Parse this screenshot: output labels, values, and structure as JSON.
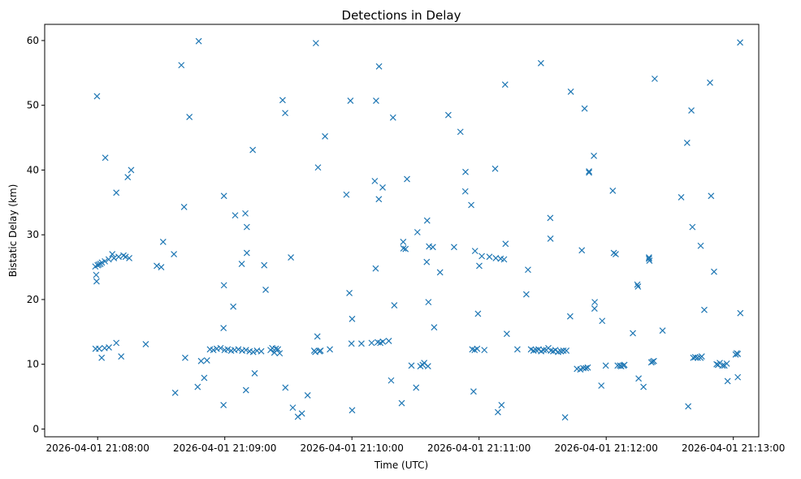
{
  "chart_data": {
    "type": "scatter",
    "title": "Detections in Delay",
    "xlabel": "Time (UTC)",
    "ylabel": "Bistatic Delay (km)",
    "marker": "x",
    "color": "#1f77b4",
    "grid": false,
    "x_unit": "seconds since 2026-04-01 21:08:00 UTC",
    "xlim": [
      -25,
      312
    ],
    "ylim": [
      -1.2,
      62.5
    ],
    "x_ticks": [
      {
        "value": 0,
        "label": "2026-04-01 21:08:00"
      },
      {
        "value": 60,
        "label": "2026-04-01 21:09:00"
      },
      {
        "value": 120,
        "label": "2026-04-01 21:10:00"
      },
      {
        "value": 180,
        "label": "2026-04-01 21:11:00"
      },
      {
        "value": 240,
        "label": "2026-04-01 21:12:00"
      },
      {
        "value": 300,
        "label": "2026-04-01 21:13:00"
      }
    ],
    "y_ticks": [
      {
        "value": 0,
        "label": "0"
      },
      {
        "value": 10,
        "label": "10"
      },
      {
        "value": 20,
        "label": "20"
      },
      {
        "value": 30,
        "label": "30"
      },
      {
        "value": 40,
        "label": "40"
      },
      {
        "value": 50,
        "label": "50"
      },
      {
        "value": 60,
        "label": "60"
      }
    ],
    "points": [
      [
        -1.1,
        25.1
      ],
      [
        -0.7,
        23.8
      ],
      [
        -0.5,
        22.8
      ],
      [
        0,
        25.3
      ],
      [
        0.6,
        25.4
      ],
      [
        1.3,
        25.5
      ],
      [
        2,
        25.7
      ],
      [
        3.4,
        25.9
      ],
      [
        5.2,
        26.2
      ],
      [
        6.9,
        27
      ],
      [
        7.7,
        26.4
      ],
      [
        9.9,
        26.6
      ],
      [
        12.2,
        26.8
      ],
      [
        13.2,
        26.6
      ],
      [
        14.9,
        26.4
      ],
      [
        -1,
        12.4
      ],
      [
        0.7,
        12.4
      ],
      [
        1.9,
        11
      ],
      [
        3.3,
        12.5
      ],
      [
        5.3,
        12.6
      ],
      [
        8.8,
        13.3
      ],
      [
        11.1,
        11.2
      ],
      [
        -0.3,
        51.4
      ],
      [
        3.6,
        41.9
      ],
      [
        8.8,
        36.5
      ],
      [
        14.2,
        38.9
      ],
      [
        15.8,
        40
      ],
      [
        22.7,
        13.1
      ],
      [
        27.9,
        25.2
      ],
      [
        30,
        25
      ],
      [
        30.9,
        28.9
      ],
      [
        36,
        27
      ],
      [
        36.6,
        5.6
      ],
      [
        39.5,
        56.2
      ],
      [
        40.8,
        34.3
      ],
      [
        41.3,
        11
      ],
      [
        43.3,
        48.2
      ],
      [
        47.2,
        6.5
      ],
      [
        47.7,
        59.9
      ],
      [
        48.8,
        10.5
      ],
      [
        50.3,
        7.9
      ],
      [
        51.6,
        10.6
      ],
      [
        53,
        12.3
      ],
      [
        54.6,
        12.2
      ],
      [
        56.2,
        12.4
      ],
      [
        58,
        12.5
      ],
      [
        59.9,
        12.2
      ],
      [
        61.4,
        12.3
      ],
      [
        63,
        12.1
      ],
      [
        64.6,
        12.2
      ],
      [
        66.4,
        12.3
      ],
      [
        68.2,
        12.1
      ],
      [
        70,
        12.2
      ],
      [
        71.7,
        12
      ],
      [
        73.4,
        11.9
      ],
      [
        75.2,
        12.1
      ],
      [
        59.6,
        22.2
      ],
      [
        59.4,
        15.6
      ],
      [
        59.4,
        3.7
      ],
      [
        59.6,
        36
      ],
      [
        64,
        18.9
      ],
      [
        64.9,
        33
      ],
      [
        68,
        25.5
      ],
      [
        69.7,
        33.3
      ],
      [
        70,
        6
      ],
      [
        70.4,
        31.2
      ],
      [
        70.4,
        27.2
      ],
      [
        73.2,
        43.1
      ],
      [
        74.1,
        8.6
      ],
      [
        77.2,
        12
      ],
      [
        78.6,
        25.3
      ],
      [
        79.3,
        21.5
      ],
      [
        81.6,
        12.2
      ],
      [
        82.4,
        12.5
      ],
      [
        83.4,
        11.8
      ],
      [
        84.1,
        12.4
      ],
      [
        85.1,
        12.3
      ],
      [
        85.9,
        11.7
      ],
      [
        87.3,
        50.8
      ],
      [
        88.5,
        48.8
      ],
      [
        88.6,
        6.4
      ],
      [
        91.2,
        26.5
      ],
      [
        92.1,
        3.3
      ],
      [
        94.5,
        1.9
      ],
      [
        96.4,
        2.4
      ],
      [
        99.1,
        5.2
      ],
      [
        102.2,
        12.1
      ],
      [
        102.7,
        11.9
      ],
      [
        103,
        59.6
      ],
      [
        103.7,
        14.3
      ],
      [
        104,
        40.4
      ],
      [
        104.7,
        12
      ],
      [
        105.2,
        12.1
      ],
      [
        107.3,
        45.2
      ],
      [
        109.6,
        12.3
      ],
      [
        117.4,
        36.2
      ],
      [
        118.8,
        21
      ],
      [
        119.3,
        50.7
      ],
      [
        119.8,
        13.2
      ],
      [
        120.1,
        17
      ],
      [
        120.1,
        2.9
      ],
      [
        124.5,
        13.2
      ],
      [
        129.3,
        13.3
      ],
      [
        130.8,
        38.3
      ],
      [
        131.2,
        24.8
      ],
      [
        131.4,
        50.7
      ],
      [
        132.2,
        13.4
      ],
      [
        132.7,
        35.5
      ],
      [
        132.8,
        56
      ],
      [
        133.4,
        13.3
      ],
      [
        134.5,
        37.3
      ],
      [
        134.6,
        13.5
      ],
      [
        137.4,
        13.6
      ],
      [
        138.5,
        7.5
      ],
      [
        139.4,
        48.1
      ],
      [
        140,
        19.1
      ],
      [
        143.5,
        4
      ],
      [
        144.2,
        28.9
      ],
      [
        144.3,
        27.9
      ],
      [
        145.3,
        27.8
      ],
      [
        146,
        38.6
      ],
      [
        148.1,
        9.8
      ],
      [
        150.3,
        6.4
      ],
      [
        150.9,
        30.4
      ],
      [
        152.3,
        9.7
      ],
      [
        153.4,
        9.9
      ],
      [
        154.1,
        10.2
      ],
      [
        155.3,
        25.8
      ],
      [
        155.5,
        32.2
      ],
      [
        155.9,
        9.7
      ],
      [
        156.1,
        19.6
      ],
      [
        156.4,
        28.2
      ],
      [
        158.2,
        28.1
      ],
      [
        158.8,
        15.7
      ],
      [
        161.6,
        24.2
      ],
      [
        165.5,
        48.5
      ],
      [
        168.2,
        28.1
      ],
      [
        171.2,
        45.9
      ],
      [
        173.5,
        36.7
      ],
      [
        173.6,
        39.7
      ],
      [
        176.3,
        34.6
      ],
      [
        176.8,
        12.3
      ],
      [
        177.4,
        5.8
      ],
      [
        177.9,
        12.2
      ],
      [
        178.1,
        27.5
      ],
      [
        179.1,
        12.4
      ],
      [
        179.5,
        17.8
      ],
      [
        180.1,
        25.2
      ],
      [
        181.3,
        26.7
      ],
      [
        182.5,
        12.2
      ],
      [
        184.9,
        26.6
      ],
      [
        187.6,
        40.2
      ],
      [
        187.9,
        26.4
      ],
      [
        188.9,
        2.6
      ],
      [
        190.2,
        26.3
      ],
      [
        190.6,
        3.7
      ],
      [
        191.8,
        26.2
      ],
      [
        192.3,
        53.2
      ],
      [
        192.5,
        28.6
      ],
      [
        193.1,
        14.7
      ],
      [
        198.1,
        12.3
      ],
      [
        202.3,
        20.8
      ],
      [
        203.1,
        24.6
      ],
      [
        204.5,
        12.3
      ],
      [
        205.7,
        12.1
      ],
      [
        206.9,
        12.2
      ],
      [
        208.1,
        12.3
      ],
      [
        209.2,
        56.5
      ],
      [
        209.3,
        12
      ],
      [
        210.5,
        12.2
      ],
      [
        211.7,
        12.2
      ],
      [
        212.7,
        12.5
      ],
      [
        213.6,
        32.6
      ],
      [
        213.7,
        29.4
      ],
      [
        213.9,
        12.1
      ],
      [
        215,
        12
      ],
      [
        216,
        12.2
      ],
      [
        217.3,
        11.9
      ],
      [
        218.6,
        12
      ],
      [
        219.8,
        12.1
      ],
      [
        220.6,
        1.8
      ],
      [
        221.2,
        12.1
      ],
      [
        223,
        17.4
      ],
      [
        223.3,
        52.1
      ],
      [
        226.2,
        9.3
      ],
      [
        227.8,
        9.2
      ],
      [
        228.5,
        27.6
      ],
      [
        229.2,
        9.4
      ],
      [
        229.8,
        49.5
      ],
      [
        230.4,
        9.4
      ],
      [
        231.3,
        9.5
      ],
      [
        231.9,
        39.8
      ],
      [
        231.9,
        39.6
      ],
      [
        234.2,
        42.2
      ],
      [
        234.5,
        18.6
      ],
      [
        234.6,
        19.6
      ],
      [
        237.7,
        6.7
      ],
      [
        238.1,
        16.7
      ],
      [
        239.8,
        9.8
      ],
      [
        243.1,
        36.8
      ],
      [
        243.6,
        27.2
      ],
      [
        244.5,
        27
      ],
      [
        245.4,
        9.8
      ],
      [
        246.5,
        9.8
      ],
      [
        247.1,
        9.7
      ],
      [
        248.2,
        9.8
      ],
      [
        248.6,
        9.9
      ],
      [
        252.6,
        14.8
      ],
      [
        254.7,
        22.3
      ],
      [
        255,
        22
      ],
      [
        255.3,
        7.8
      ],
      [
        257.6,
        6.5
      ],
      [
        260.2,
        26.3
      ],
      [
        260.2,
        26.5
      ],
      [
        260.4,
        26
      ],
      [
        261.3,
        10.3
      ],
      [
        261.9,
        10.4
      ],
      [
        262.5,
        10.5
      ],
      [
        262.9,
        54.1
      ],
      [
        266.6,
        15.2
      ],
      [
        275.4,
        35.8
      ],
      [
        278.2,
        44.2
      ],
      [
        278.7,
        3.5
      ],
      [
        280.2,
        49.2
      ],
      [
        280.7,
        31.2
      ],
      [
        281.1,
        11
      ],
      [
        282,
        11.1
      ],
      [
        283.2,
        11
      ],
      [
        284.5,
        11
      ],
      [
        284.6,
        28.3
      ],
      [
        285.1,
        11.2
      ],
      [
        286.3,
        18.4
      ],
      [
        289,
        53.5
      ],
      [
        289.5,
        36
      ],
      [
        290.9,
        24.3
      ],
      [
        292.1,
        10
      ],
      [
        292.8,
        9.9
      ],
      [
        293.6,
        10.2
      ],
      [
        294.9,
        9.8
      ],
      [
        295.8,
        9.8
      ],
      [
        296.9,
        10.1
      ],
      [
        297.3,
        7.4
      ],
      [
        301.1,
        11.5
      ],
      [
        301.6,
        11.7
      ],
      [
        302.1,
        11.6
      ],
      [
        302.1,
        8
      ],
      [
        303.2,
        59.7
      ],
      [
        303.3,
        17.9
      ]
    ]
  }
}
